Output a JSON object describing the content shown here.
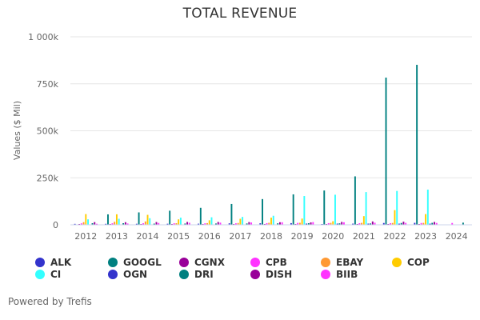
{
  "chart_data": {
    "type": "bar",
    "title": "TOTAL REVENUE",
    "xlabel": "",
    "ylabel": "Values ($ Mil)",
    "ylim": [
      0,
      1000000
    ],
    "yticks": [
      0,
      250000,
      500000,
      750000,
      1000000
    ],
    "ytick_labels": [
      "0",
      "250k",
      "500k",
      "750k",
      "1 000k"
    ],
    "grid": true,
    "legend_position": "bottom",
    "categories": [
      "2012",
      "2013",
      "2014",
      "2015",
      "2016",
      "2017",
      "2018",
      "2019",
      "2020",
      "2021",
      "2022",
      "2023",
      "2024"
    ],
    "series": [
      {
        "name": "ALK",
        "color": "#3333cc",
        "values": [
          5000,
          5200,
          5400,
          5600,
          5900,
          7900,
          8300,
          8800,
          3600,
          6200,
          9600,
          10400,
          null
        ]
      },
      {
        "name": "GOOGL",
        "color": "#008080",
        "values": [
          null,
          55500,
          66000,
          75000,
          90300,
          110900,
          136800,
          161900,
          182500,
          257600,
          783000,
          851000,
          null
        ]
      },
      {
        "name": "CGNX",
        "color": "#990099",
        "values": [
          300,
          350,
          490,
          450,
          520,
          750,
          810,
          730,
          810,
          1040,
          1000,
          840,
          null
        ]
      },
      {
        "name": "CPB",
        "color": "#ff33ff",
        "values": [
          7700,
          8100,
          8300,
          8300,
          8000,
          7900,
          8700,
          9900,
          8700,
          8500,
          8600,
          9400,
          9600
        ]
      },
      {
        "name": "EBAY",
        "color": "#ff9933",
        "values": [
          14100,
          16000,
          17900,
          8600,
          9000,
          9600,
          10700,
          10800,
          10300,
          10400,
          9800,
          10100,
          null
        ]
      },
      {
        "name": "COP",
        "color": "#ffcc00",
        "values": [
          57000,
          56000,
          53000,
          29000,
          24000,
          32000,
          38000,
          33000,
          19000,
          46000,
          78000,
          57000,
          null
        ]
      },
      {
        "name": "CI",
        "color": "#33ffff",
        "values": [
          29000,
          32000,
          35000,
          38000,
          40000,
          42000,
          48000,
          153000,
          160000,
          174000,
          180000,
          187000,
          null
        ]
      },
      {
        "name": "OGN",
        "color": "#3333cc",
        "values": [
          null,
          null,
          null,
          null,
          null,
          null,
          null,
          6500,
          6500,
          6300,
          6200,
          6300,
          null
        ]
      },
      {
        "name": "DRI",
        "color": "#008080",
        "values": [
          8500,
          8500,
          6300,
          6800,
          6900,
          7200,
          8100,
          8500,
          7800,
          7200,
          9600,
          10500,
          11400
        ]
      },
      {
        "name": "DISH",
        "color": "#990099",
        "values": [
          14300,
          13900,
          14600,
          15100,
          15100,
          14400,
          13600,
          12800,
          15500,
          17900,
          16700,
          15200,
          null
        ]
      },
      {
        "name": "BIIB",
        "color": "#ff33ff",
        "values": [
          5500,
          6900,
          9700,
          10800,
          11400,
          12300,
          13500,
          14400,
          13400,
          11000,
          10200,
          9800,
          null
        ]
      }
    ]
  },
  "footer": {
    "text": "Powered by Trefis"
  }
}
